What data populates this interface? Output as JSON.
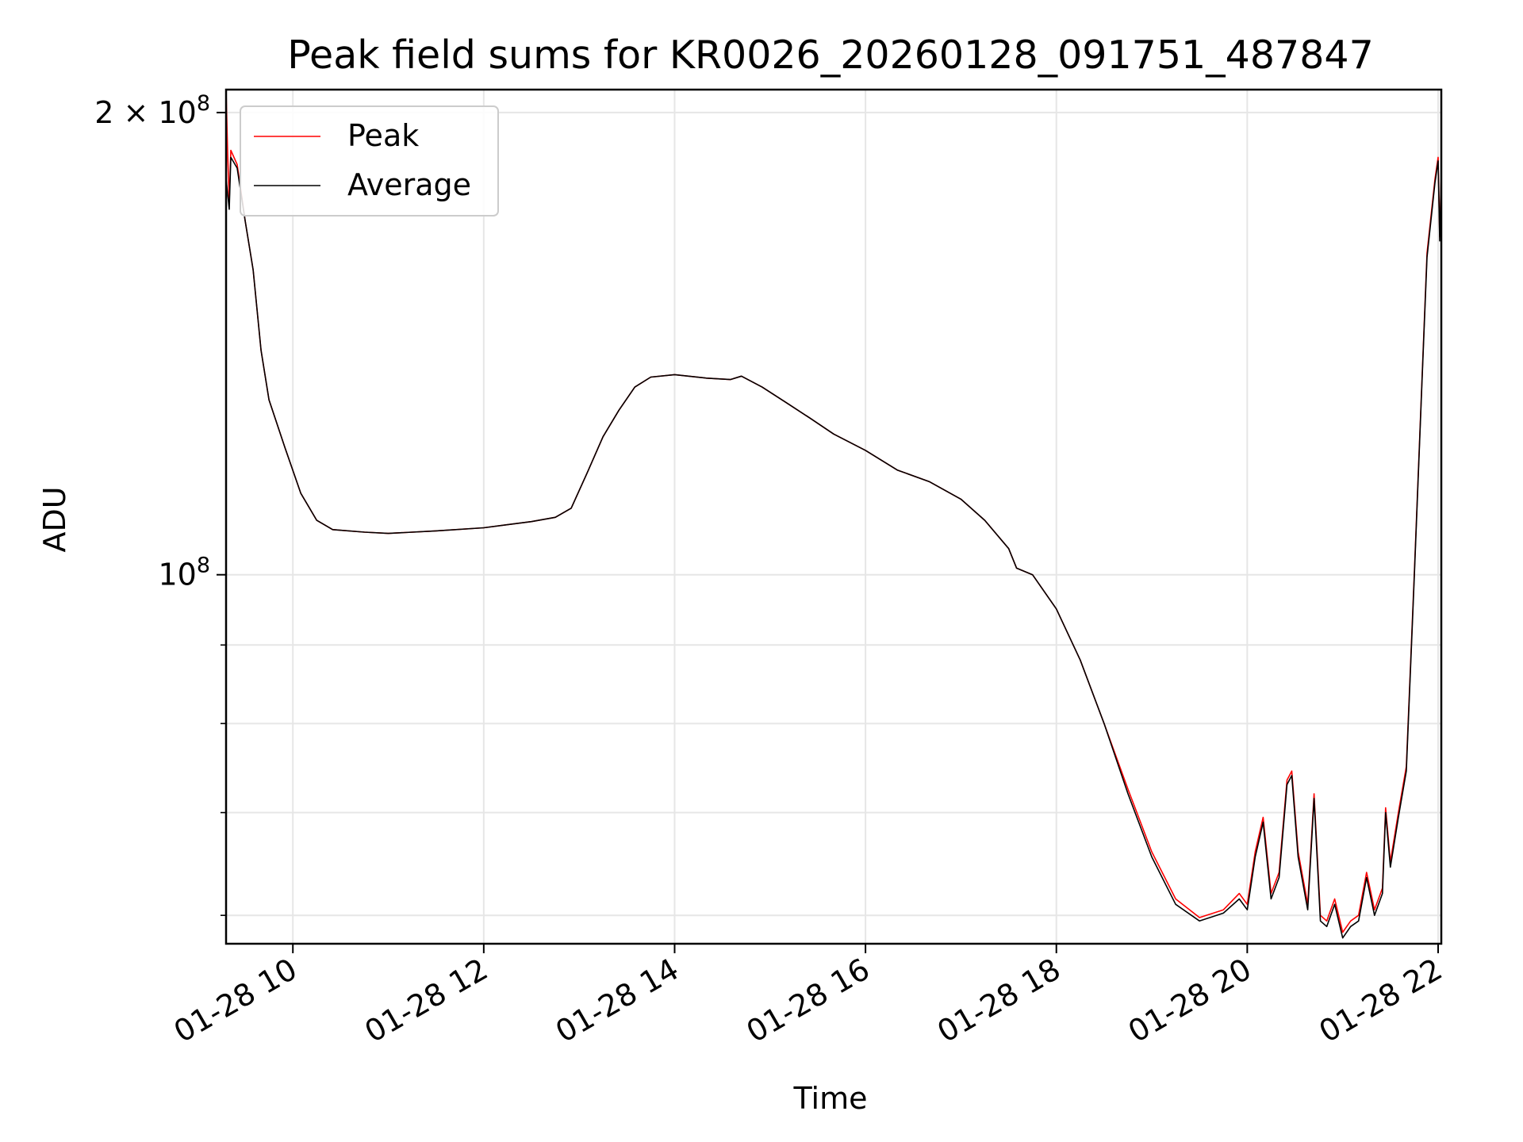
{
  "chart_data": {
    "type": "line",
    "title": "Peak field sums for KR0026_20260128_091751_487847",
    "xlabel": "Time",
    "ylabel": "ADU",
    "y_scale": "log",
    "grid": true,
    "legend": "upper-left",
    "xlim": [
      "2026-01-28 09:18",
      "2026-01-28 22:02"
    ],
    "ylim": [
      57500000,
      207000000
    ],
    "x_ticks": [
      {
        "value": "2026-01-28 10:00",
        "label": "01-28 10"
      },
      {
        "value": "2026-01-28 12:00",
        "label": "01-28 12"
      },
      {
        "value": "2026-01-28 14:00",
        "label": "01-28 14"
      },
      {
        "value": "2026-01-28 16:00",
        "label": "01-28 16"
      },
      {
        "value": "2026-01-28 18:00",
        "label": "01-28 18"
      },
      {
        "value": "2026-01-28 20:00",
        "label": "01-28 20"
      },
      {
        "value": "2026-01-28 22:00",
        "label": "01-28 22"
      }
    ],
    "y_ticks_major": [
      {
        "value": 100000000,
        "base": "10",
        "exp": "8",
        "prefix": ""
      },
      {
        "value": 200000000,
        "base": "10",
        "exp": "8",
        "prefix": "2 × "
      }
    ],
    "y_ticks_minor": [
      60000000,
      70000000,
      80000000,
      90000000
    ],
    "series": [
      {
        "name": "Peak",
        "color": "#ff0000",
        "points": [
          [
            "2026-01-28 09:18",
            207000000
          ],
          [
            "2026-01-28 09:19",
            188000000
          ],
          [
            "2026-01-28 09:20",
            175000000
          ],
          [
            "2026-01-28 09:21",
            189000000
          ],
          [
            "2026-01-28 09:25",
            185000000
          ],
          [
            "2026-01-28 09:30",
            170000000
          ],
          [
            "2026-01-28 09:35",
            158000000
          ],
          [
            "2026-01-28 09:40",
            140000000
          ],
          [
            "2026-01-28 09:45",
            130000000
          ],
          [
            "2026-01-28 09:55",
            121000000
          ],
          [
            "2026-01-28 10:05",
            113000000
          ],
          [
            "2026-01-28 10:15",
            108500000
          ],
          [
            "2026-01-28 10:25",
            107000000
          ],
          [
            "2026-01-28 10:45",
            106600000
          ],
          [
            "2026-01-28 11:00",
            106400000
          ],
          [
            "2026-01-28 11:30",
            106800000
          ],
          [
            "2026-01-28 12:00",
            107300000
          ],
          [
            "2026-01-28 12:30",
            108300000
          ],
          [
            "2026-01-28 12:45",
            109000000
          ],
          [
            "2026-01-28 12:55",
            110500000
          ],
          [
            "2026-01-28 13:05",
            116500000
          ],
          [
            "2026-01-28 13:15",
            123000000
          ],
          [
            "2026-01-28 13:25",
            128000000
          ],
          [
            "2026-01-28 13:35",
            132500000
          ],
          [
            "2026-01-28 13:45",
            134500000
          ],
          [
            "2026-01-28 14:00",
            135000000
          ],
          [
            "2026-01-28 14:20",
            134300000
          ],
          [
            "2026-01-28 14:35",
            134000000
          ],
          [
            "2026-01-28 14:42",
            134700000
          ],
          [
            "2026-01-28 14:55",
            132500000
          ],
          [
            "2026-01-28 15:10",
            129500000
          ],
          [
            "2026-01-28 15:25",
            126500000
          ],
          [
            "2026-01-28 15:40",
            123500000
          ],
          [
            "2026-01-28 16:00",
            120500000
          ],
          [
            "2026-01-28 16:20",
            117000000
          ],
          [
            "2026-01-28 16:40",
            115000000
          ],
          [
            "2026-01-28 17:00",
            112000000
          ],
          [
            "2026-01-28 17:15",
            108500000
          ],
          [
            "2026-01-28 17:30",
            104000000
          ],
          [
            "2026-01-28 17:35",
            101000000
          ],
          [
            "2026-01-28 17:45",
            100000000
          ],
          [
            "2026-01-28 18:00",
            95000000
          ],
          [
            "2026-01-28 18:15",
            88000000
          ],
          [
            "2026-01-28 18:30",
            80000000
          ],
          [
            "2026-01-28 18:45",
            72500000
          ],
          [
            "2026-01-28 19:00",
            66000000
          ],
          [
            "2026-01-28 19:15",
            61500000
          ],
          [
            "2026-01-28 19:30",
            59800000
          ],
          [
            "2026-01-28 19:45",
            60500000
          ],
          [
            "2026-01-28 19:55",
            62000000
          ],
          [
            "2026-01-28 20:00",
            61000000
          ],
          [
            "2026-01-28 20:05",
            66000000
          ],
          [
            "2026-01-28 20:10",
            69500000
          ],
          [
            "2026-01-28 20:15",
            62000000
          ],
          [
            "2026-01-28 20:20",
            64000000
          ],
          [
            "2026-01-28 20:25",
            73500000
          ],
          [
            "2026-01-28 20:28",
            74500000
          ],
          [
            "2026-01-28 20:32",
            66000000
          ],
          [
            "2026-01-28 20:38",
            61000000
          ],
          [
            "2026-01-28 20:42",
            72000000
          ],
          [
            "2026-01-28 20:46",
            60000000
          ],
          [
            "2026-01-28 20:50",
            59500000
          ],
          [
            "2026-01-28 20:55",
            61500000
          ],
          [
            "2026-01-28 21:00",
            58500000
          ],
          [
            "2026-01-28 21:05",
            59500000
          ],
          [
            "2026-01-28 21:10",
            60000000
          ],
          [
            "2026-01-28 21:15",
            64000000
          ],
          [
            "2026-01-28 21:20",
            60500000
          ],
          [
            "2026-01-28 21:25",
            62500000
          ],
          [
            "2026-01-28 21:27",
            70500000
          ],
          [
            "2026-01-28 21:30",
            65000000
          ],
          [
            "2026-01-28 21:35",
            70000000
          ],
          [
            "2026-01-28 21:40",
            75000000
          ],
          [
            "2026-01-28 21:45",
            100000000
          ],
          [
            "2026-01-28 21:50",
            135000000
          ],
          [
            "2026-01-28 21:53",
            162000000
          ],
          [
            "2026-01-28 21:58",
            181000000
          ],
          [
            "2026-01-28 22:00",
            187000000
          ],
          [
            "2026-01-28 22:01",
            166000000
          ],
          [
            "2026-01-28 22:02",
            183000000
          ]
        ]
      },
      {
        "name": "Average",
        "color": "#000000",
        "points": [
          [
            "2026-01-28 09:18",
            181000000
          ],
          [
            "2026-01-28 09:19",
            177000000
          ],
          [
            "2026-01-28 09:20",
            173000000
          ],
          [
            "2026-01-28 09:21",
            187000000
          ],
          [
            "2026-01-28 09:25",
            184000000
          ],
          [
            "2026-01-28 09:30",
            170000000
          ],
          [
            "2026-01-28 09:35",
            158000000
          ],
          [
            "2026-01-28 09:40",
            140000000
          ],
          [
            "2026-01-28 09:45",
            130000000
          ],
          [
            "2026-01-28 09:55",
            121000000
          ],
          [
            "2026-01-28 10:05",
            113000000
          ],
          [
            "2026-01-28 10:15",
            108500000
          ],
          [
            "2026-01-28 10:25",
            107000000
          ],
          [
            "2026-01-28 10:45",
            106600000
          ],
          [
            "2026-01-28 11:00",
            106400000
          ],
          [
            "2026-01-28 11:30",
            106800000
          ],
          [
            "2026-01-28 12:00",
            107300000
          ],
          [
            "2026-01-28 12:30",
            108300000
          ],
          [
            "2026-01-28 12:45",
            109000000
          ],
          [
            "2026-01-28 12:55",
            110500000
          ],
          [
            "2026-01-28 13:05",
            116500000
          ],
          [
            "2026-01-28 13:15",
            123000000
          ],
          [
            "2026-01-28 13:25",
            128000000
          ],
          [
            "2026-01-28 13:35",
            132500000
          ],
          [
            "2026-01-28 13:45",
            134500000
          ],
          [
            "2026-01-28 14:00",
            135000000
          ],
          [
            "2026-01-28 14:20",
            134300000
          ],
          [
            "2026-01-28 14:35",
            134000000
          ],
          [
            "2026-01-28 14:42",
            134700000
          ],
          [
            "2026-01-28 14:55",
            132500000
          ],
          [
            "2026-01-28 15:10",
            129500000
          ],
          [
            "2026-01-28 15:25",
            126500000
          ],
          [
            "2026-01-28 15:40",
            123500000
          ],
          [
            "2026-01-28 16:00",
            120500000
          ],
          [
            "2026-01-28 16:20",
            117000000
          ],
          [
            "2026-01-28 16:40",
            115000000
          ],
          [
            "2026-01-28 17:00",
            112000000
          ],
          [
            "2026-01-28 17:15",
            108500000
          ],
          [
            "2026-01-28 17:30",
            104000000
          ],
          [
            "2026-01-28 17:35",
            101000000
          ],
          [
            "2026-01-28 17:45",
            100000000
          ],
          [
            "2026-01-28 18:00",
            95000000
          ],
          [
            "2026-01-28 18:15",
            88000000
          ],
          [
            "2026-01-28 18:30",
            80000000
          ],
          [
            "2026-01-28 18:45",
            72000000
          ],
          [
            "2026-01-28 19:00",
            65500000
          ],
          [
            "2026-01-28 19:15",
            61000000
          ],
          [
            "2026-01-28 19:30",
            59500000
          ],
          [
            "2026-01-28 19:45",
            60200000
          ],
          [
            "2026-01-28 19:55",
            61500000
          ],
          [
            "2026-01-28 20:00",
            60500000
          ],
          [
            "2026-01-28 20:05",
            65500000
          ],
          [
            "2026-01-28 20:10",
            69000000
          ],
          [
            "2026-01-28 20:15",
            61500000
          ],
          [
            "2026-01-28 20:20",
            63500000
          ],
          [
            "2026-01-28 20:25",
            73000000
          ],
          [
            "2026-01-28 20:28",
            74000000
          ],
          [
            "2026-01-28 20:32",
            65500000
          ],
          [
            "2026-01-28 20:38",
            60500000
          ],
          [
            "2026-01-28 20:42",
            71500000
          ],
          [
            "2026-01-28 20:46",
            59500000
          ],
          [
            "2026-01-28 20:50",
            59000000
          ],
          [
            "2026-01-28 20:55",
            61000000
          ],
          [
            "2026-01-28 21:00",
            58000000
          ],
          [
            "2026-01-28 21:05",
            59000000
          ],
          [
            "2026-01-28 21:10",
            59500000
          ],
          [
            "2026-01-28 21:15",
            63500000
          ],
          [
            "2026-01-28 21:20",
            60000000
          ],
          [
            "2026-01-28 21:25",
            62000000
          ],
          [
            "2026-01-28 21:27",
            70000000
          ],
          [
            "2026-01-28 21:30",
            64500000
          ],
          [
            "2026-01-28 21:35",
            69500000
          ],
          [
            "2026-01-28 21:40",
            74500000
          ],
          [
            "2026-01-28 21:45",
            99500000
          ],
          [
            "2026-01-28 21:50",
            134500000
          ],
          [
            "2026-01-28 21:53",
            161000000
          ],
          [
            "2026-01-28 21:58",
            180000000
          ],
          [
            "2026-01-28 22:00",
            186000000
          ],
          [
            "2026-01-28 22:01",
            165000000
          ],
          [
            "2026-01-28 22:02",
            182000000
          ]
        ]
      }
    ]
  }
}
